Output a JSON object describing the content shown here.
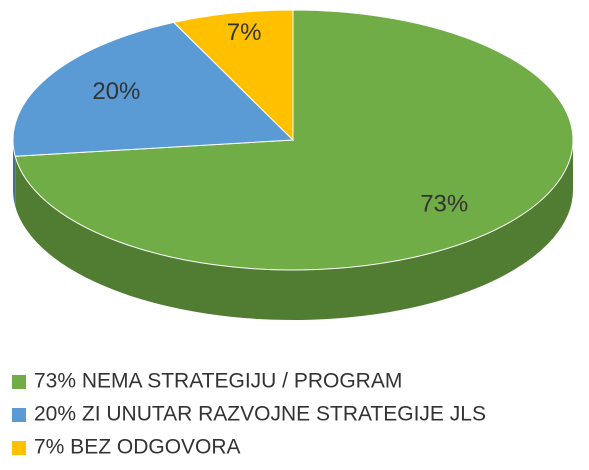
{
  "chart_data": {
    "type": "pie",
    "categories": [
      "73% NEMA STRATEGIJU / PROGRAM",
      "20% ZI UNUTAR RAZVOJNE STRATEGIJE JLS",
      "7% BEZ ODGOVORA"
    ],
    "values": [
      73,
      20,
      7
    ],
    "value_labels": [
      "73%",
      "20%",
      "7%"
    ],
    "colors": [
      "#70ad47",
      "#5b9bd5",
      "#ffc000"
    ],
    "legend": "bottom"
  }
}
